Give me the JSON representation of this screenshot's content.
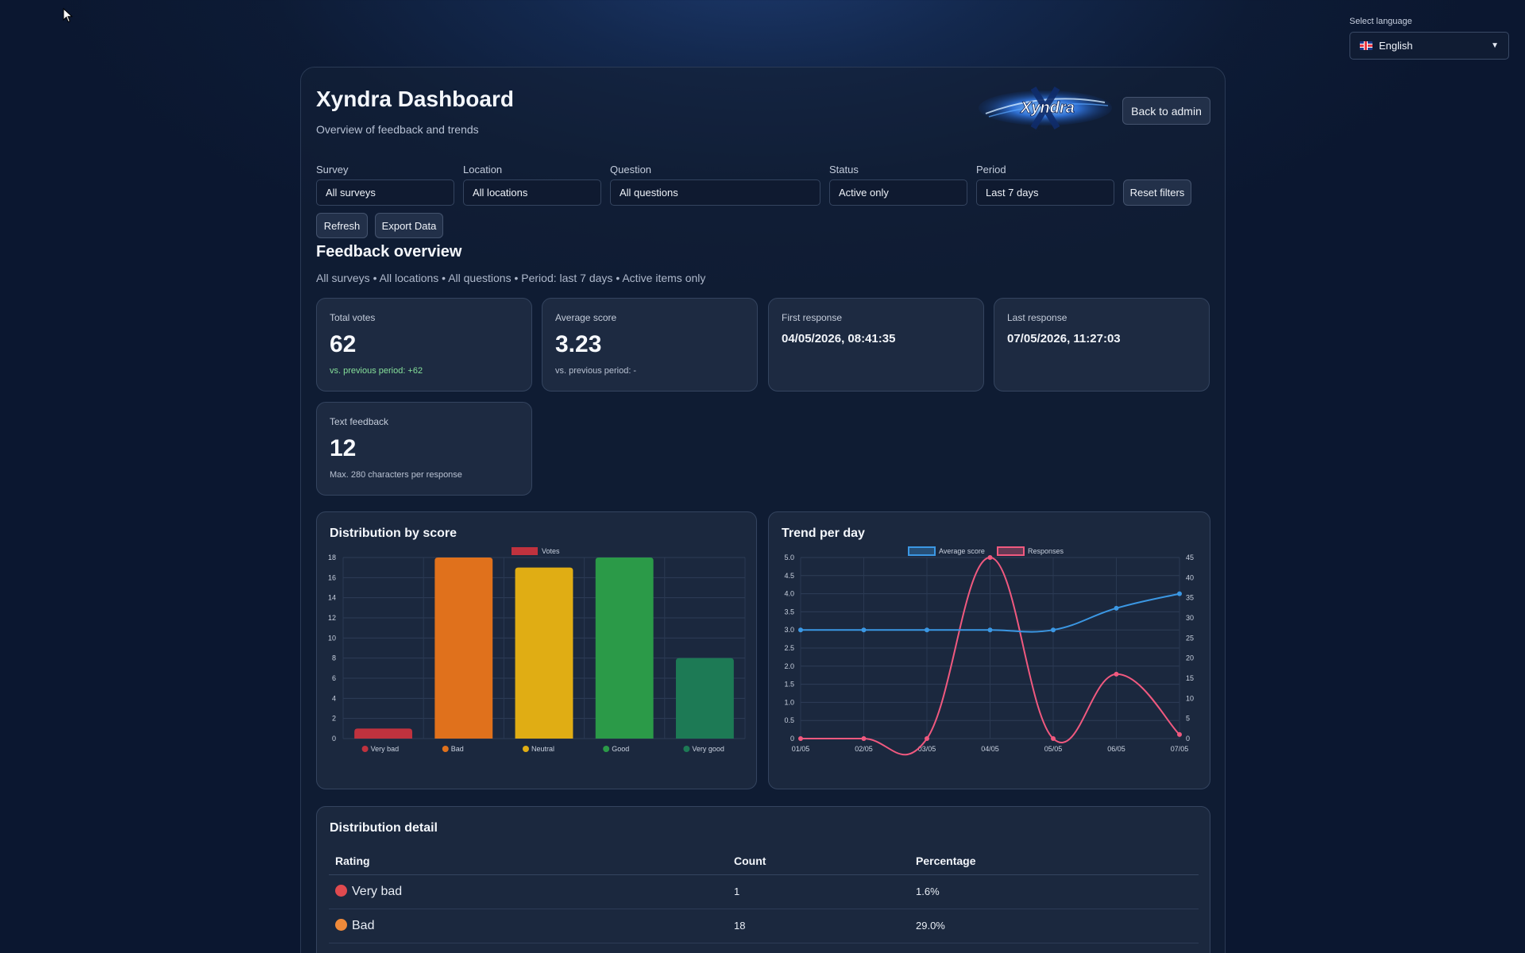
{
  "language": {
    "label": "Select language",
    "selected": "English"
  },
  "header": {
    "title": "Xyndra Dashboard",
    "subtitle": "Overview of feedback and trends",
    "logo_text": "Xyndra",
    "back_button": "Back to admin"
  },
  "filters": {
    "survey": {
      "label": "Survey",
      "value": "All surveys"
    },
    "location": {
      "label": "Location",
      "value": "All locations"
    },
    "question": {
      "label": "Question",
      "value": "All questions"
    },
    "status": {
      "label": "Status",
      "value": "Active only"
    },
    "period": {
      "label": "Period",
      "value": "Last 7 days"
    },
    "reset_button": "Reset filters",
    "refresh_button": "Refresh",
    "export_button": "Export Data"
  },
  "overview": {
    "title": "Feedback overview",
    "summary": "All surveys • All locations • All questions • Period: last 7 days • Active items only"
  },
  "cards": {
    "total_votes": {
      "label": "Total votes",
      "value": "62",
      "note": "vs. previous period: +62"
    },
    "average_score": {
      "label": "Average score",
      "value": "3.23",
      "note": "vs. previous period: -"
    },
    "first_response": {
      "label": "First response",
      "value": "04/05/2026, 08:41:35"
    },
    "last_response": {
      "label": "Last response",
      "value": "07/05/2026, 11:27:03"
    },
    "text_feedback": {
      "label": "Text feedback",
      "value": "12",
      "note": "Max. 280 characters per response"
    }
  },
  "colors": {
    "very_bad": "#c0323e",
    "bad": "#e0711c",
    "neutral": "#e0ad14",
    "good": "#2b9a48",
    "very_good": "#1d7a55",
    "average_line": "#3b97e3",
    "responses_line": "#f0597f"
  },
  "chart_data": [
    {
      "type": "bar",
      "title": "Distribution by score",
      "categories": [
        "Very bad",
        "Bad",
        "Neutral",
        "Good",
        "Very good"
      ],
      "series": [
        {
          "name": "Votes",
          "values": [
            1,
            18,
            17,
            18,
            8
          ]
        }
      ],
      "ylim": [
        0,
        18
      ],
      "yticks": [
        0,
        2,
        4,
        6,
        8,
        10,
        12,
        14,
        16,
        18
      ],
      "legend": "top",
      "grid": true
    },
    {
      "type": "line",
      "title": "Trend per day",
      "x": [
        "01/05",
        "02/05",
        "03/05",
        "04/05",
        "05/05",
        "06/05",
        "07/05"
      ],
      "series": [
        {
          "name": "Average score",
          "axis": "left",
          "values": [
            3.0,
            3.0,
            3.0,
            3.0,
            3.0,
            3.6,
            4.0
          ]
        },
        {
          "name": "Responses",
          "axis": "right",
          "values": [
            0,
            0,
            0,
            45,
            0,
            16,
            1
          ]
        }
      ],
      "ylim_left": [
        0,
        5
      ],
      "yticks_left": [
        "0",
        "0.5",
        "1.0",
        "1.5",
        "2.0",
        "2.5",
        "3.0",
        "3.5",
        "4.0",
        "4.5",
        "5.0"
      ],
      "ylim_right": [
        0,
        45
      ],
      "yticks_right": [
        0,
        5,
        10,
        15,
        20,
        25,
        30,
        35,
        40,
        45
      ],
      "legend": "top",
      "grid": true
    }
  ],
  "detail": {
    "title": "Distribution detail",
    "headers": [
      "Rating",
      "Count",
      "Percentage"
    ],
    "rows": [
      {
        "rating": "Very bad",
        "count": "1",
        "percentage": "1.6%"
      },
      {
        "rating": "Bad",
        "count": "18",
        "percentage": "29.0%"
      }
    ]
  }
}
